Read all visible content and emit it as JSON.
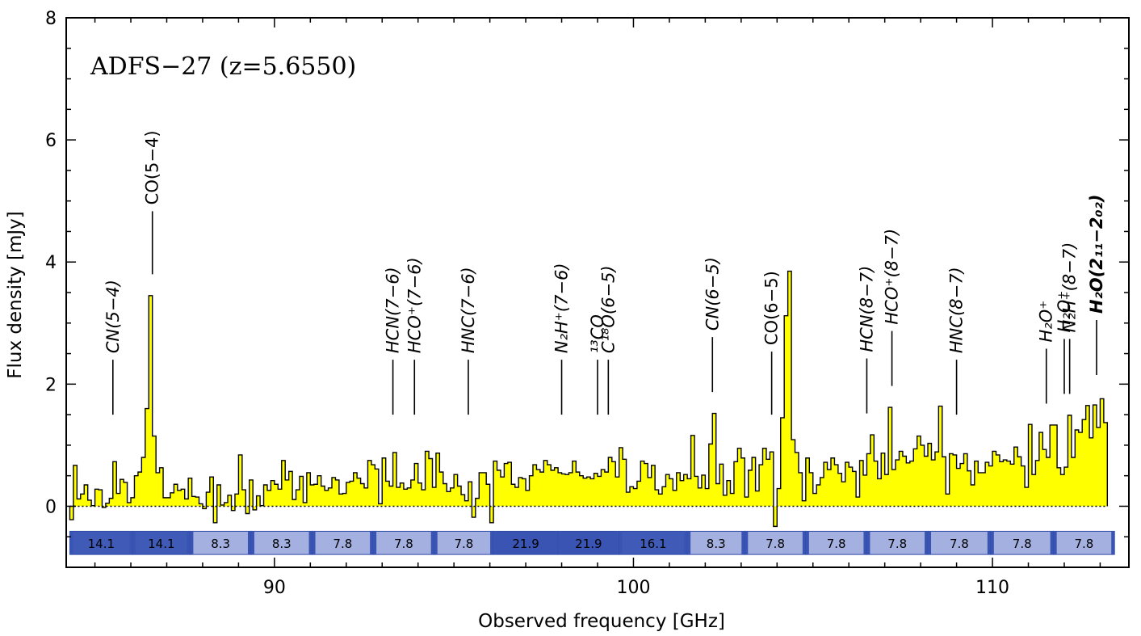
{
  "chart_data": {
    "type": "histogram-spectrum",
    "title": "ADFS−27 (z=5.6550)",
    "xlabel": "Observed frequency [GHz]",
    "ylabel": "Flux density [mJy]",
    "xlim": [
      84.2,
      113.8
    ],
    "ylim": [
      -1,
      8
    ],
    "x_ticks": [
      90,
      100,
      110
    ],
    "x_tick_labels": [
      "90",
      "100",
      "110"
    ],
    "y_ticks": [
      0,
      2,
      4,
      6,
      8
    ],
    "y_tick_labels": [
      "0",
      "2",
      "4",
      "6",
      "8"
    ],
    "zero_line_style": "dotted",
    "fill_color": "#ffff00",
    "spectrum": {
      "x_start": 84.3,
      "channel_width": 0.1,
      "flux": [
        -0.22,
        0.67,
        0.12,
        0.2,
        0.35,
        0.1,
        0.01,
        0.28,
        0.27,
        -0.02,
        0.05,
        0.13,
        0.73,
        0.21,
        0.44,
        0.39,
        0.06,
        0.14,
        0.5,
        0.56,
        0.8,
        1.6,
        3.45,
        1.15,
        0.55,
        0.63,
        0.14,
        0.14,
        0.22,
        0.36,
        0.26,
        0.28,
        0.12,
        0.46,
        0.16,
        0.15,
        0.04,
        -0.04,
        0.23,
        0.48,
        -0.27,
        0.35,
        0.02,
        0.06,
        0.18,
        -0.07,
        0.2,
        0.84,
        0.27,
        -0.12,
        0.43,
        -0.06,
        0.17,
        0.01,
        0.35,
        0.26,
        0.42,
        0.36,
        0.28,
        0.75,
        0.43,
        0.57,
        0.11,
        0.27,
        0.49,
        0.06,
        0.55,
        0.35,
        0.36,
        0.5,
        0.33,
        0.26,
        0.3,
        0.47,
        0.43,
        0.2,
        0.21,
        0.39,
        0.41,
        0.55,
        0.46,
        0.37,
        0.3,
        0.75,
        0.68,
        0.61,
        0.04,
        0.79,
        0.41,
        0.33,
        0.88,
        0.31,
        0.38,
        0.28,
        0.3,
        0.43,
        0.7,
        0.38,
        0.27,
        0.9,
        0.78,
        0.31,
        0.87,
        0.56,
        0.37,
        0.24,
        0.3,
        0.52,
        0.33,
        0.19,
        0.09,
        0.4,
        -0.18,
        0.13,
        0.55,
        0.55,
        0.36,
        -0.27,
        0.74,
        0.59,
        0.48,
        0.7,
        0.72,
        0.36,
        0.31,
        0.47,
        0.45,
        0.26,
        0.5,
        0.68,
        0.6,
        0.56,
        0.75,
        0.68,
        0.59,
        0.63,
        0.55,
        0.53,
        0.52,
        0.55,
        0.74,
        0.56,
        0.5,
        0.46,
        0.48,
        0.45,
        0.54,
        0.49,
        0.6,
        0.56,
        0.8,
        0.73,
        0.48,
        0.96,
        0.77,
        0.23,
        0.32,
        0.29,
        0.41,
        0.74,
        0.7,
        0.47,
        0.67,
        0.27,
        0.2,
        0.32,
        0.52,
        0.45,
        0.26,
        0.55,
        0.42,
        0.52,
        0.45,
        1.16,
        0.49,
        0.3,
        0.51,
        0.29,
        1.02,
        1.52,
        0.37,
        0.69,
        0.18,
        0.42,
        0.21,
        0.73,
        0.95,
        0.79,
        0.15,
        0.59,
        0.8,
        0.25,
        0.68,
        0.95,
        0.77,
        0.89,
        -0.33,
        0.29,
        1.45,
        3.12,
        3.85,
        1.09,
        0.88,
        0.55,
        0.09,
        0.79,
        0.55,
        0.21,
        0.35,
        0.47,
        0.72,
        0.6,
        0.79,
        0.68,
        0.54,
        0.4,
        0.72,
        0.64,
        0.57,
        0.15,
        0.75,
        0.51,
        0.86,
        1.17,
        0.74,
        0.45,
        0.87,
        0.52,
        1.62,
        0.6,
        0.76,
        0.9,
        0.82,
        0.71,
        0.74,
        0.94,
        1.15,
        1.0,
        0.82,
        1.03,
        0.76,
        0.89,
        1.64,
        0.81,
        0.2,
        0.86,
        0.84,
        0.62,
        0.7,
        0.86,
        0.58,
        0.35,
        0.74,
        0.55,
        0.55,
        0.72,
        0.66,
        0.9,
        0.84,
        0.73,
        0.76,
        0.74,
        0.69,
        0.97,
        0.81,
        0.66,
        0.31,
        1.34,
        0.52,
        0.75,
        1.21,
        0.93,
        0.8,
        1.33,
        1.33,
        0.63,
        0.52,
        0.64,
        1.49,
        0.8,
        1.25,
        1.21,
        1.42,
        1.65,
        1.12,
        1.66,
        1.29,
        1.76,
        1.37
      ]
    },
    "lines": [
      {
        "label": "CN(5−4)",
        "x": 85.5,
        "style": "italic"
      },
      {
        "label": "CO(5−4)",
        "x": 86.6,
        "style": "normal"
      },
      {
        "label": "HCN(7−6)",
        "x": 93.3,
        "style": "italic"
      },
      {
        "label": "HCO⁺(7−6)",
        "x": 93.9,
        "style": "italic"
      },
      {
        "label": "HNC(7−6)",
        "x": 95.4,
        "style": "italic"
      },
      {
        "label": "N₂H⁺(7−6)",
        "x": 98.0,
        "style": "italic"
      },
      {
        "label": "¹³CO",
        "x": 99.0,
        "style": "italic"
      },
      {
        "label": "C¹⁸O(6−5)",
        "x": 99.3,
        "style": "italic"
      },
      {
        "label": "CN(6−5)",
        "x": 102.2,
        "style": "italic"
      },
      {
        "label": "CO(6−5)",
        "x": 103.85,
        "style": "normal"
      },
      {
        "label": "HCN(8−7)",
        "x": 106.5,
        "style": "italic"
      },
      {
        "label": "HCO⁺(8−7)",
        "x": 107.2,
        "style": "italic"
      },
      {
        "label": "HNC(8−7)",
        "x": 109.0,
        "style": "italic"
      },
      {
        "label": "H₂O⁺",
        "x": 111.5,
        "style": "italic"
      },
      {
        "label": "H₂O⁺",
        "x": 112.0,
        "style": "italic"
      },
      {
        "label": "N₂H⁺(8−7)",
        "x": 112.15,
        "style": "italic"
      },
      {
        "label": "H₂O(2₁₁−2₀₂)",
        "x": 112.9,
        "style": "bold-italic"
      }
    ],
    "coverage_boxes": [
      {
        "x0": 84.3,
        "x1": 86.05,
        "label": "14.1",
        "color": "#3f5bb7"
      },
      {
        "x0": 86.05,
        "x1": 87.65,
        "label": "14.1",
        "color": "#3f5bb7"
      },
      {
        "x0": 87.65,
        "x1": 89.35,
        "label": "8.3",
        "color": "#a4b0e0"
      },
      {
        "x0": 89.35,
        "x1": 91.05,
        "label": "8.3",
        "color": "#a4b0e0"
      },
      {
        "x0": 91.05,
        "x1": 92.75,
        "label": "7.8",
        "color": "#a4b0e0"
      },
      {
        "x0": 92.75,
        "x1": 94.45,
        "label": "7.8",
        "color": "#a4b0e0"
      },
      {
        "x0": 94.45,
        "x1": 96.1,
        "label": "7.8",
        "color": "#a4b0e0"
      },
      {
        "x0": 96.1,
        "x1": 97.9,
        "label": "21.9",
        "color": "#3a54b3"
      },
      {
        "x0": 97.9,
        "x1": 99.6,
        "label": "21.9",
        "color": "#3a54b3"
      },
      {
        "x0": 99.6,
        "x1": 101.5,
        "label": "16.1",
        "color": "#3f5bb7"
      },
      {
        "x0": 101.5,
        "x1": 103.1,
        "label": "8.3",
        "color": "#a4b0e0"
      },
      {
        "x0": 103.1,
        "x1": 104.8,
        "label": "7.8",
        "color": "#a4b0e0"
      },
      {
        "x0": 104.8,
        "x1": 106.5,
        "label": "7.8",
        "color": "#a4b0e0"
      },
      {
        "x0": 106.5,
        "x1": 108.2,
        "label": "7.8",
        "color": "#a4b0e0"
      },
      {
        "x0": 108.2,
        "x1": 109.95,
        "label": "7.8",
        "color": "#a4b0e0"
      },
      {
        "x0": 109.95,
        "x1": 111.7,
        "label": "7.8",
        "color": "#a4b0e0"
      },
      {
        "x0": 111.7,
        "x1": 113.4,
        "label": "7.8",
        "color": "#a4b0e0"
      }
    ]
  }
}
